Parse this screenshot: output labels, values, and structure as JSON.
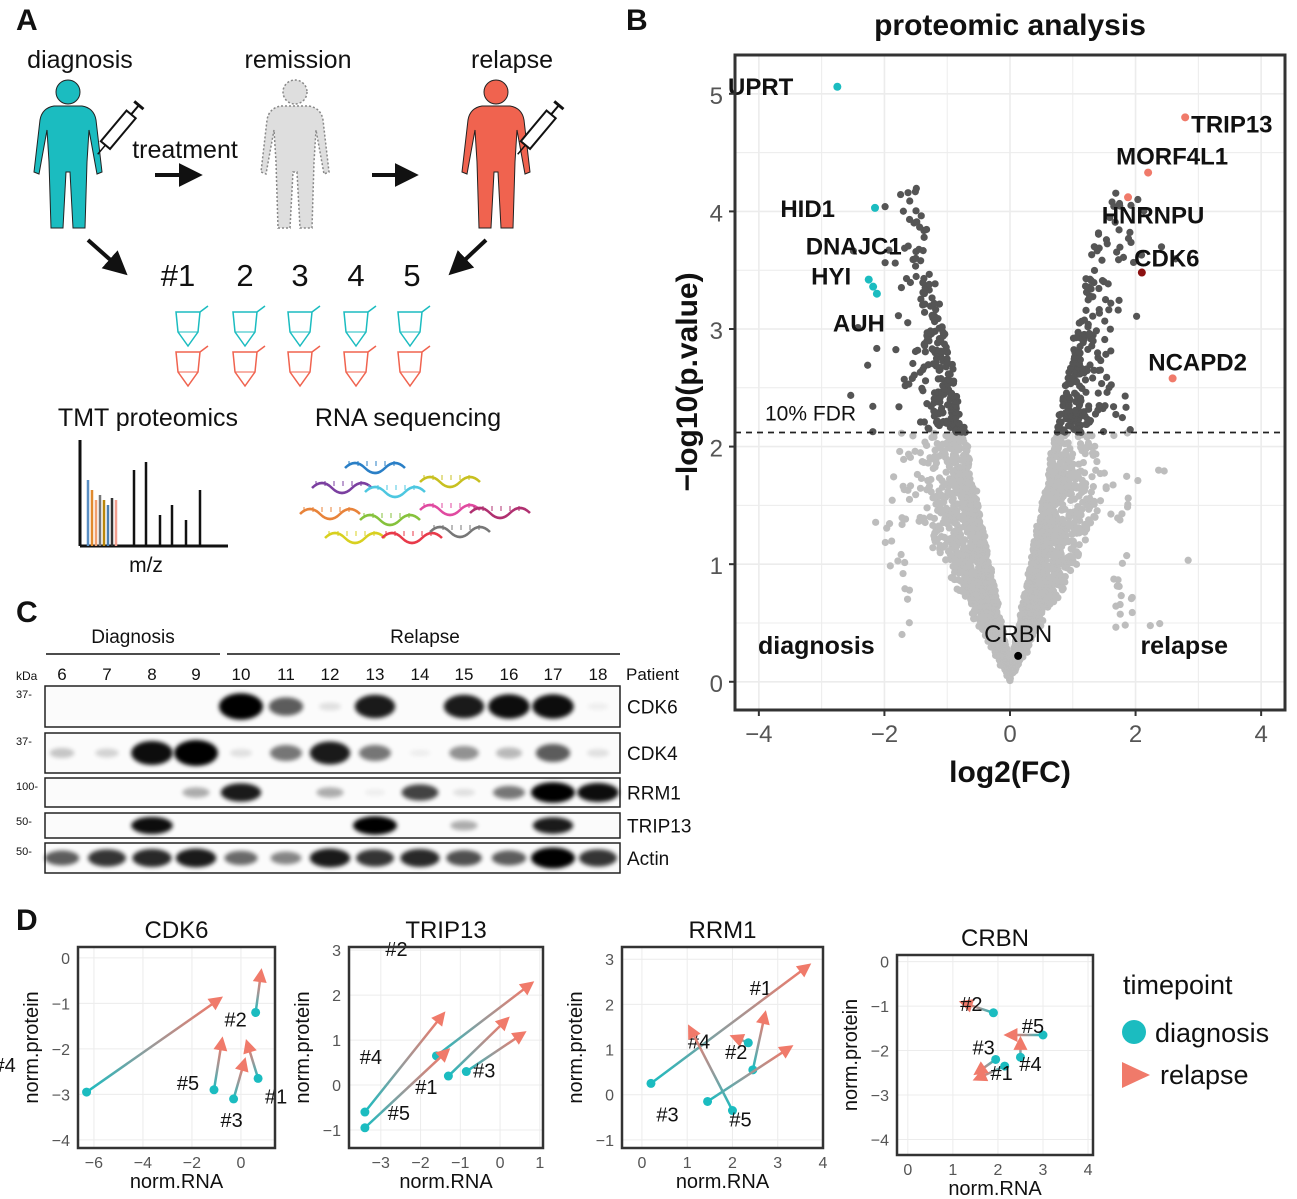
{
  "panels": {
    "a": "A",
    "b": "B",
    "c": "C",
    "d": "D"
  },
  "panel_a": {
    "timepoints": [
      "diagnosis",
      "remission",
      "relapse"
    ],
    "treatment": "treatment",
    "samples": [
      "#1",
      "2",
      "3",
      "4",
      "5"
    ],
    "methods": [
      "TMT proteomics",
      "RNA sequencing"
    ],
    "mz_label": "m/z",
    "colors": {
      "diagnosis": "#1bbcc0",
      "remission": "#cfcfcf",
      "relapse": "#f0634f"
    }
  },
  "panel_c": {
    "groups": [
      "Diagnosis",
      "Relapse"
    ],
    "kda_label": "kDa",
    "patient_label": "Patient",
    "patients": [
      "6",
      "7",
      "8",
      "9",
      "10",
      "11",
      "12",
      "13",
      "14",
      "15",
      "16",
      "17",
      "18"
    ],
    "diagnosis_patients": 4,
    "blots": [
      {
        "protein": "CDK6",
        "kda": "37-",
        "intensity": [
          0,
          0,
          0,
          0,
          1,
          0.6,
          0.1,
          0.85,
          0,
          0.85,
          0.9,
          0.9,
          0.05
        ]
      },
      {
        "protein": "CDK4",
        "kda": "37-",
        "intensity": [
          0.2,
          0.15,
          0.9,
          1,
          0.1,
          0.5,
          0.85,
          0.5,
          0.05,
          0.4,
          0.25,
          0.6,
          0.1
        ]
      },
      {
        "protein": "RRM1",
        "kda": "100-",
        "intensity": [
          0,
          0,
          0,
          0.3,
          0.85,
          0,
          0.3,
          0.05,
          0.7,
          0.1,
          0.5,
          1,
          0.9
        ]
      },
      {
        "protein": "TRIP13",
        "kda": "50-",
        "intensity": [
          0,
          0,
          0.9,
          0,
          0,
          0,
          0,
          1,
          0,
          0.3,
          0,
          0.85,
          0
        ]
      },
      {
        "protein": "Actin",
        "kda": "50-",
        "intensity": [
          0.6,
          0.75,
          0.8,
          0.85,
          0.55,
          0.45,
          0.85,
          0.75,
          0.8,
          0.65,
          0.6,
          1,
          0.75
        ]
      }
    ]
  },
  "chart_data": [
    {
      "type": "scatter",
      "title": "proteomic analysis",
      "xlabel": "log2(FC)",
      "ylabel": "−log10(p.value)",
      "xlim": [
        -4.38,
        4.38
      ],
      "ylim": [
        -0.24,
        5.33
      ],
      "xticks": [
        -4,
        -2,
        0,
        2,
        4
      ],
      "yticks": [
        0,
        1,
        2,
        3,
        4,
        5
      ],
      "grid": true,
      "fdr": {
        "label": "10% FDR",
        "y": 2.12
      },
      "corner_labels": {
        "left": "diagnosis",
        "right": "relapse"
      },
      "colors": {
        "diagnosis": "#1bbcc0",
        "relapse": "#f07a6a",
        "highlight": "#8b1010",
        "significant": "#555555",
        "nonsignificant": "#bdbdbd",
        "reference": "#000000"
      },
      "labeled_points": [
        {
          "gene": "UPRT",
          "x": -2.75,
          "y": 5.06,
          "group": "diagnosis"
        },
        {
          "gene": "HID1",
          "x": -2.15,
          "y": 4.03,
          "group": "diagnosis"
        },
        {
          "gene": "DNAJC1",
          "x": -2.25,
          "y": 3.42,
          "group": "diagnosis"
        },
        {
          "gene": "HYI",
          "x": -2.18,
          "y": 3.36,
          "group": "diagnosis"
        },
        {
          "gene": "AUH",
          "x": -2.12,
          "y": 3.3,
          "group": "diagnosis"
        },
        {
          "gene": "TRIP13",
          "x": 2.79,
          "y": 4.8,
          "group": "relapse"
        },
        {
          "gene": "MORF4L1",
          "x": 2.2,
          "y": 4.33,
          "group": "relapse"
        },
        {
          "gene": "HNRNPU",
          "x": 1.88,
          "y": 4.12,
          "group": "relapse"
        },
        {
          "gene": "CDK6",
          "x": 2.1,
          "y": 3.48,
          "group": "highlight"
        },
        {
          "gene": "NCAPD2",
          "x": 2.59,
          "y": 2.58,
          "group": "relapse"
        },
        {
          "gene": "CRBN",
          "x": 0.13,
          "y": 0.22,
          "group": "reference"
        }
      ]
    },
    {
      "type": "scatter",
      "title": "CDK6",
      "xlabel": "norm.RNA",
      "ylabel": "norm.protein",
      "xlim": [
        -6.65,
        1.39
      ],
      "ylim": [
        -4.18,
        0.24
      ],
      "xticks": [
        -6,
        -4,
        -2,
        0
      ],
      "yticks": [
        0,
        -1,
        -2,
        -3,
        -4
      ],
      "patients": [
        {
          "label": "#1",
          "diagnosis": [
            0.7,
            -2.65
          ],
          "relapse": [
            0.3,
            -1.95
          ]
        },
        {
          "label": "#2",
          "diagnosis": [
            0.6,
            -1.2
          ],
          "relapse": [
            0.8,
            -0.4
          ]
        },
        {
          "label": "#3",
          "diagnosis": [
            -0.3,
            -3.1
          ],
          "relapse": [
            0.1,
            -2.35
          ]
        },
        {
          "label": "#4",
          "diagnosis": [
            -6.3,
            -2.95
          ],
          "relapse": [
            -1.0,
            -0.95
          ]
        },
        {
          "label": "#5",
          "diagnosis": [
            -1.1,
            -2.9
          ],
          "relapse": [
            -0.8,
            -1.9
          ]
        }
      ]
    },
    {
      "type": "scatter",
      "title": "TRIP13",
      "xlabel": "norm.RNA",
      "ylabel": "norm.protein",
      "xlim": [
        -3.8,
        1.08
      ],
      "ylim": [
        -1.4,
        3.07
      ],
      "xticks": [
        -3,
        -2,
        -1,
        0,
        1
      ],
      "yticks": [
        3,
        2,
        1,
        0,
        -1
      ],
      "patients": [
        {
          "label": "#1",
          "diagnosis": [
            -1.3,
            0.2
          ],
          "relapse": [
            0.1,
            1.4
          ]
        },
        {
          "label": "#2",
          "diagnosis": [
            -1.6,
            0.65
          ],
          "relapse": [
            0.7,
            2.2
          ]
        },
        {
          "label": "#3",
          "diagnosis": [
            -0.85,
            0.3
          ],
          "relapse": [
            0.5,
            1.1
          ]
        },
        {
          "label": "#4",
          "diagnosis": [
            -3.4,
            -0.6
          ],
          "relapse": [
            -1.5,
            1.5
          ]
        },
        {
          "label": "#5",
          "diagnosis": [
            -3.4,
            -0.95
          ],
          "relapse": [
            -1.4,
            0.7
          ]
        }
      ]
    },
    {
      "type": "scatter",
      "title": "RRM1",
      "xlabel": "norm.RNA",
      "ylabel": "norm.protein",
      "xlim": [
        -0.44,
        4.0
      ],
      "ylim": [
        -1.18,
        3.27
      ],
      "xticks": [
        0,
        1,
        2,
        3,
        4
      ],
      "yticks": [
        3,
        2,
        1,
        0,
        -1
      ],
      "patients": [
        {
          "label": "#1",
          "diagnosis": [
            2.45,
            0.55
          ],
          "relapse": [
            2.7,
            1.7
          ]
        },
        {
          "label": "#2",
          "diagnosis": [
            2.35,
            1.15
          ],
          "relapse": [
            2.1,
            1.25
          ]
        },
        {
          "label": "#3",
          "diagnosis": [
            1.45,
            -0.15
          ],
          "relapse": [
            3.2,
            1.0
          ]
        },
        {
          "label": "#4",
          "diagnosis": [
            0.2,
            0.25
          ],
          "relapse": [
            3.6,
            2.8
          ]
        },
        {
          "label": "#5",
          "diagnosis": [
            2.0,
            -0.35
          ],
          "relapse": [
            1.1,
            1.4
          ]
        }
      ]
    },
    {
      "type": "scatter",
      "title": "CRBN",
      "xlabel": "norm.RNA",
      "ylabel": "norm.protein",
      "xlim": [
        -0.24,
        4.11
      ],
      "ylim": [
        -4.35,
        0.15
      ],
      "xticks": [
        0,
        1,
        2,
        3,
        4
      ],
      "yticks": [
        0,
        -1,
        -2,
        -3,
        -4
      ],
      "patients": [
        {
          "label": "#1",
          "diagnosis": [
            2.15,
            -2.35
          ],
          "relapse": [
            1.6,
            -2.6
          ]
        },
        {
          "label": "#2",
          "diagnosis": [
            1.9,
            -1.15
          ],
          "relapse": [
            1.3,
            -0.95
          ]
        },
        {
          "label": "#3",
          "diagnosis": [
            1.95,
            -2.2
          ],
          "relapse": [
            1.6,
            -2.45
          ]
        },
        {
          "label": "#4",
          "diagnosis": [
            2.5,
            -2.15
          ],
          "relapse": [
            2.5,
            -1.85
          ]
        },
        {
          "label": "#5",
          "diagnosis": [
            3.0,
            -1.65
          ],
          "relapse": [
            2.3,
            -1.65
          ]
        }
      ]
    }
  ],
  "legend": {
    "title": "timepoint",
    "items": [
      "diagnosis",
      "relapse"
    ],
    "colors": {
      "diagnosis": "#1bbcc0",
      "relapse": "#f07a6a"
    }
  }
}
